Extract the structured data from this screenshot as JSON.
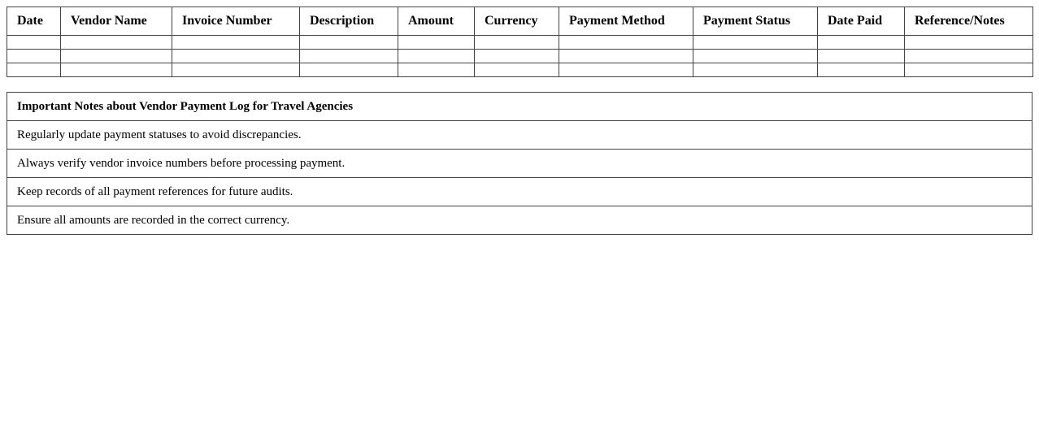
{
  "log_table": {
    "columns": [
      "Date",
      "Vendor Name",
      "Invoice Number",
      "Description",
      "Amount",
      "Currency",
      "Payment Method",
      "Payment Status",
      "Date Paid",
      "Reference/Notes"
    ],
    "rows": [
      [
        "",
        "",
        "",
        "",
        "",
        "",
        "",
        "",
        "",
        ""
      ],
      [
        "",
        "",
        "",
        "",
        "",
        "",
        "",
        "",
        "",
        ""
      ],
      [
        "",
        "",
        "",
        "",
        "",
        "",
        "",
        "",
        "",
        ""
      ]
    ]
  },
  "notes": {
    "title": "Important Notes about Vendor Payment Log for Travel Agencies",
    "items": [
      "Regularly update payment statuses to avoid discrepancies.",
      "Always verify vendor invoice numbers before processing payment.",
      "Keep records of all payment references for future audits.",
      "Ensure all amounts are recorded in the correct currency."
    ]
  }
}
